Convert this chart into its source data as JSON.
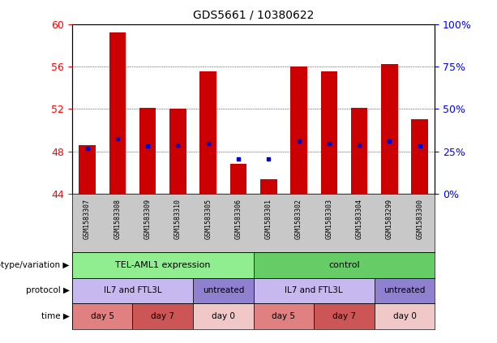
{
  "title": "GDS5661 / 10380622",
  "samples": [
    "GSM1583307",
    "GSM1583308",
    "GSM1583309",
    "GSM1583310",
    "GSM1583305",
    "GSM1583306",
    "GSM1583301",
    "GSM1583302",
    "GSM1583303",
    "GSM1583304",
    "GSM1583299",
    "GSM1583300"
  ],
  "bar_base": 44,
  "bar_tops": [
    48.6,
    59.2,
    52.1,
    52.0,
    55.5,
    46.8,
    45.4,
    56.0,
    55.5,
    52.1,
    56.2,
    51.0
  ],
  "blue_dots": [
    48.3,
    49.2,
    48.5,
    48.6,
    48.7,
    47.3,
    47.3,
    49.0,
    48.7,
    48.6,
    49.0,
    48.5
  ],
  "ylim_left": [
    44,
    60
  ],
  "yticks_left": [
    44,
    48,
    52,
    56,
    60
  ],
  "yticks_right": [
    0,
    25,
    50,
    75,
    100
  ],
  "ylabel_right_labels": [
    "0%",
    "25%",
    "50%",
    "75%",
    "100%"
  ],
  "bar_color": "#cc0000",
  "dot_color": "#0000cc",
  "tick_area_color": "#c8c8c8",
  "genotype_colors": [
    "#90ee90",
    "#66cc66"
  ],
  "genotype_labels": [
    "TEL-AML1 expression",
    "control"
  ],
  "protocol_light": "#c8b8f0",
  "protocol_dark": "#9080d0",
  "protocol_labels": [
    "IL7 and FTL3L",
    "untreated",
    "IL7 and FTL3L",
    "untreated"
  ],
  "time_day5_color": "#e08080",
  "time_day7_color": "#cc5555",
  "time_day0_color": "#f0c8c8",
  "time_labels": [
    "day 5",
    "day 7",
    "day 0",
    "day 5",
    "day 7",
    "day 0"
  ]
}
